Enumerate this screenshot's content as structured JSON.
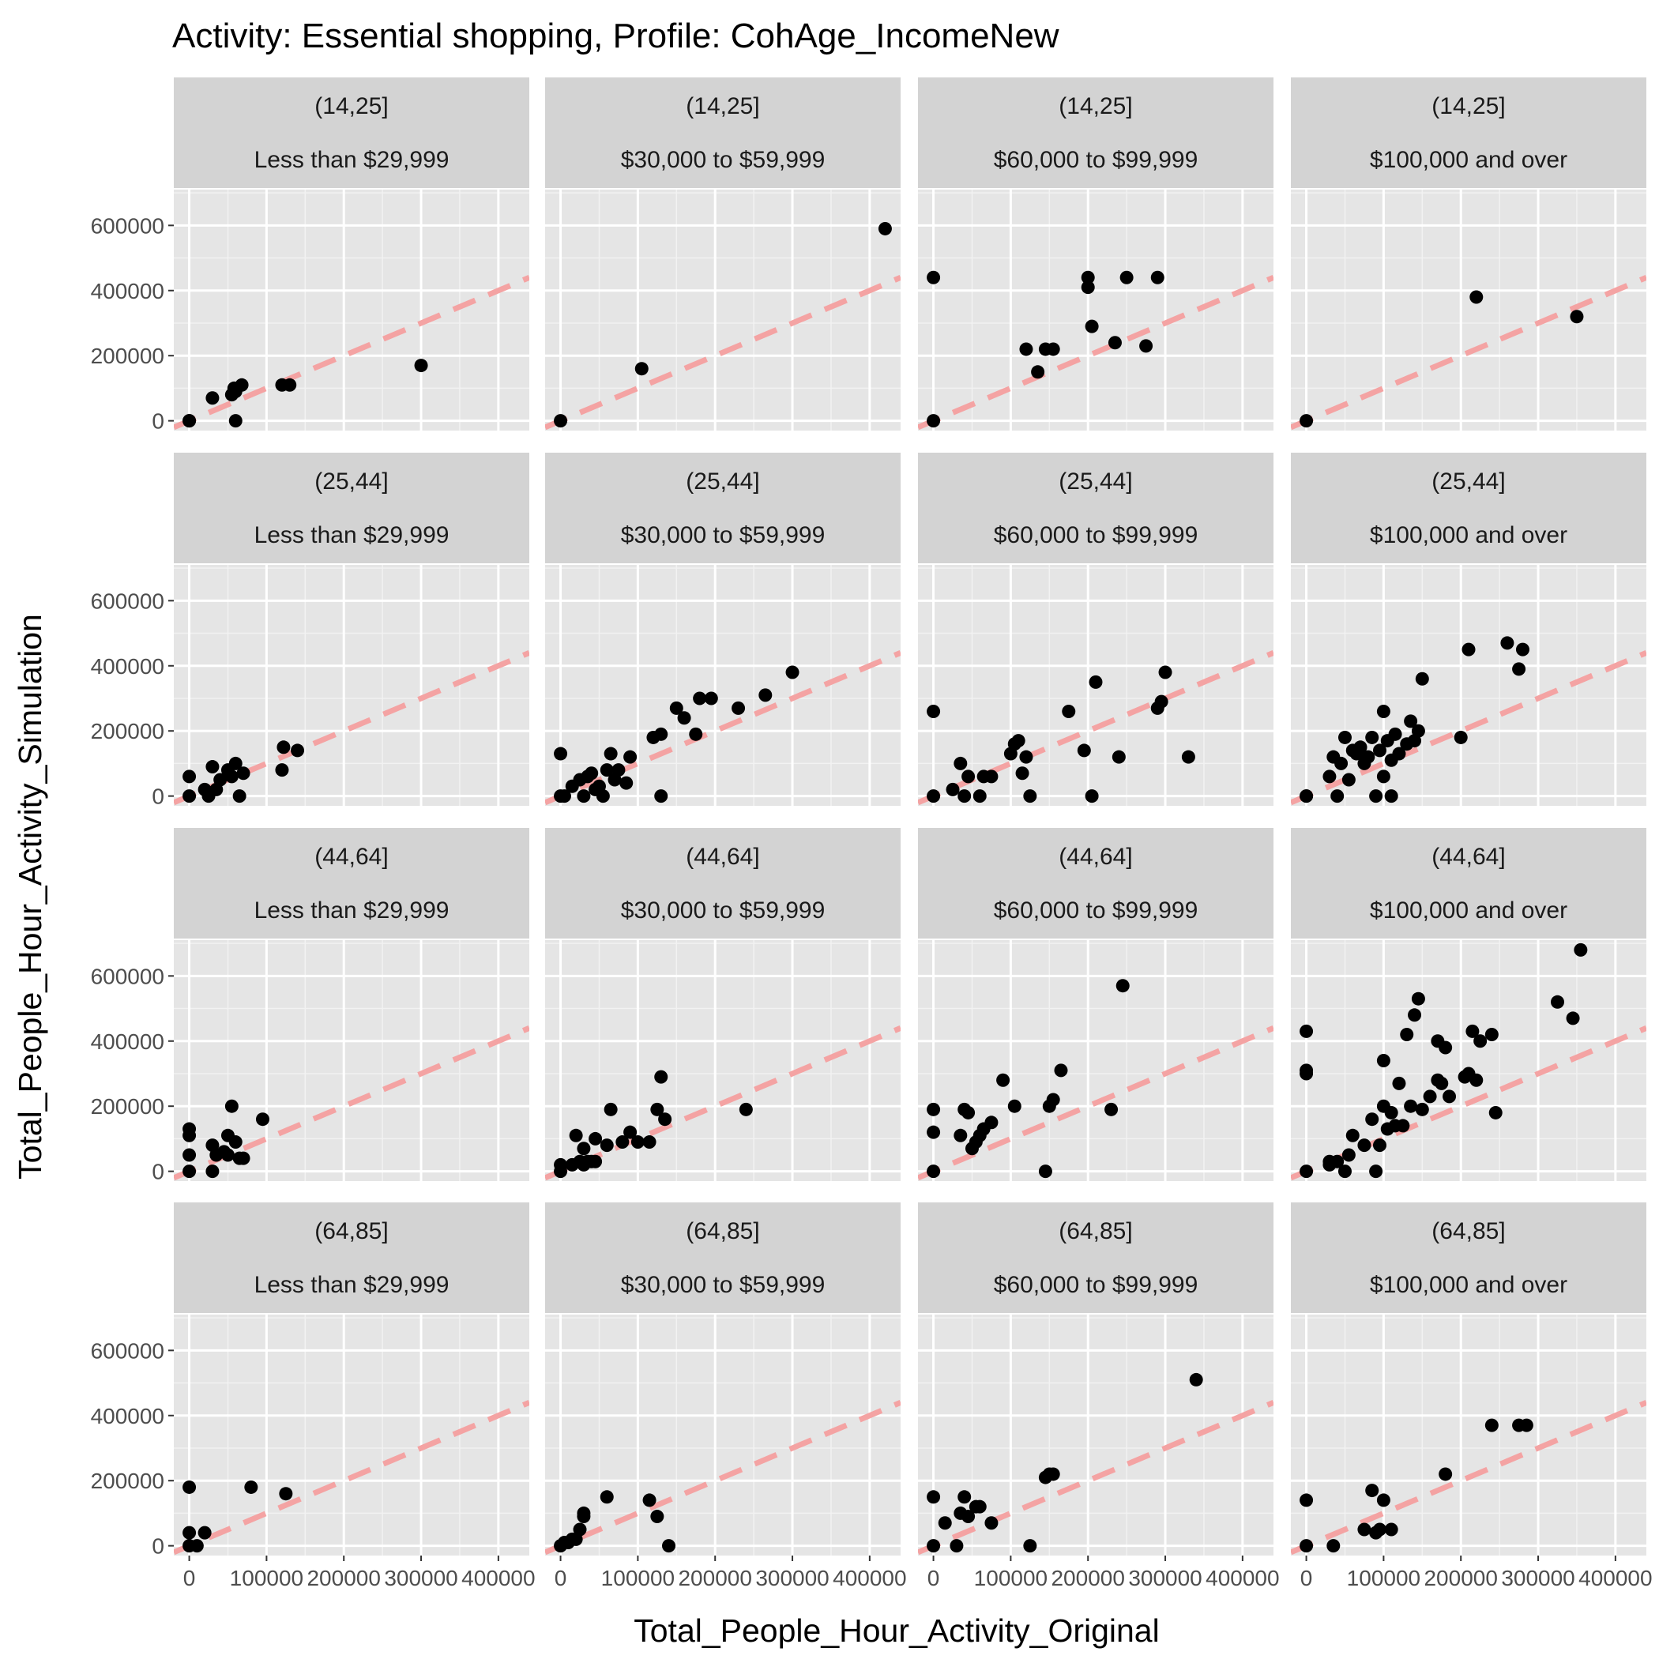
{
  "chart_data": {
    "type": "scatter",
    "title": "Activity: Essential shopping, Profile: CohAge_IncomeNew",
    "xlabel": "Total_People_Hour_Activity_Original",
    "ylabel": "Total_People_Hour_Activity_Simulation",
    "xlim": [
      -20000,
      440000
    ],
    "ylim": [
      -30000,
      710000
    ],
    "x_ticks": [
      0,
      100000,
      200000,
      300000,
      400000
    ],
    "x_tick_labels": [
      "0",
      "100000",
      "200000",
      "300000",
      "400000"
    ],
    "y_ticks": [
      0,
      200000,
      400000,
      600000
    ],
    "y_tick_labels": [
      "0",
      "200000",
      "400000",
      "600000"
    ],
    "reference_line": {
      "style": "dashed",
      "color": "#f4a3a3",
      "slope": 1,
      "intercept": 0
    },
    "grid": true,
    "panel_background": "#e5e5e5",
    "strip_background": "#d3d3d3",
    "point_color": "#000000",
    "panels": [
      {
        "age": "(14,25]",
        "income": "Less than $29,999",
        "x": [
          0,
          30000,
          55000,
          58000,
          60000,
          68000,
          120000,
          130000,
          300000,
          60000,
          0
        ],
        "y": [
          0,
          70000,
          80000,
          100000,
          90000,
          110000,
          110000,
          110000,
          170000,
          0,
          0
        ]
      },
      {
        "age": "(14,25]",
        "income": "$30,000 to $59,999",
        "x": [
          0,
          105000,
          420000
        ],
        "y": [
          0,
          160000,
          590000
        ]
      },
      {
        "age": "(14,25]",
        "income": "$60,000 to $99,999",
        "x": [
          0,
          0,
          120000,
          135000,
          145000,
          155000,
          200000,
          200000,
          205000,
          235000,
          250000,
          275000,
          290000
        ],
        "y": [
          0,
          440000,
          220000,
          150000,
          220000,
          220000,
          410000,
          440000,
          290000,
          240000,
          440000,
          230000,
          440000
        ]
      },
      {
        "age": "(14,25]",
        "income": "$100,000 and over",
        "x": [
          0,
          220000,
          350000
        ],
        "y": [
          0,
          380000,
          320000
        ]
      },
      {
        "age": "(25,44]",
        "income": "Less than $29,999",
        "x": [
          0,
          0,
          20000,
          25000,
          30000,
          35000,
          40000,
          50000,
          55000,
          60000,
          65000,
          70000,
          120000,
          122000,
          140000
        ],
        "y": [
          0,
          60000,
          20000,
          0,
          90000,
          20000,
          50000,
          80000,
          60000,
          100000,
          0,
          70000,
          80000,
          150000,
          140000
        ]
      },
      {
        "age": "(25,44]",
        "income": "$30,000 to $59,999",
        "x": [
          0,
          0,
          5000,
          15000,
          25000,
          30000,
          35000,
          40000,
          45000,
          50000,
          55000,
          60000,
          65000,
          70000,
          75000,
          85000,
          90000,
          120000,
          130000,
          130000,
          150000,
          160000,
          175000,
          180000,
          195000,
          230000,
          265000,
          300000
        ],
        "y": [
          0,
          130000,
          0,
          30000,
          50000,
          0,
          60000,
          70000,
          20000,
          30000,
          0,
          80000,
          130000,
          50000,
          80000,
          40000,
          120000,
          180000,
          190000,
          0,
          270000,
          240000,
          190000,
          300000,
          300000,
          270000,
          310000,
          380000
        ]
      },
      {
        "age": "(25,44]",
        "income": "$60,000 to $99,999",
        "x": [
          0,
          0,
          25000,
          35000,
          40000,
          45000,
          60000,
          65000,
          75000,
          100000,
          105000,
          110000,
          115000,
          120000,
          125000,
          175000,
          195000,
          205000,
          210000,
          240000,
          290000,
          295000,
          300000,
          330000
        ],
        "y": [
          0,
          260000,
          20000,
          100000,
          0,
          60000,
          0,
          60000,
          60000,
          130000,
          160000,
          170000,
          70000,
          120000,
          0,
          260000,
          140000,
          0,
          350000,
          120000,
          270000,
          290000,
          380000,
          120000
        ]
      },
      {
        "age": "(25,44]",
        "income": "$100,000 and over",
        "x": [
          0,
          0,
          30000,
          35000,
          40000,
          45000,
          50000,
          55000,
          60000,
          65000,
          70000,
          75000,
          80000,
          85000,
          90000,
          95000,
          100000,
          100000,
          105000,
          110000,
          110000,
          115000,
          120000,
          130000,
          135000,
          140000,
          145000,
          150000,
          200000,
          210000,
          260000,
          275000,
          280000
        ],
        "y": [
          0,
          0,
          60000,
          120000,
          0,
          100000,
          180000,
          50000,
          140000,
          130000,
          150000,
          100000,
          120000,
          180000,
          0,
          140000,
          60000,
          260000,
          170000,
          110000,
          0,
          190000,
          130000,
          160000,
          230000,
          170000,
          200000,
          360000,
          180000,
          450000,
          470000,
          390000,
          450000
        ]
      },
      {
        "age": "(44,64]",
        "income": "Less than $29,999",
        "x": [
          0,
          0,
          0,
          0,
          30000,
          30000,
          35000,
          45000,
          50000,
          50000,
          55000,
          60000,
          65000,
          70000,
          95000
        ],
        "y": [
          0,
          50000,
          110000,
          130000,
          0,
          80000,
          50000,
          60000,
          110000,
          50000,
          200000,
          90000,
          40000,
          40000,
          160000
        ]
      },
      {
        "age": "(44,64]",
        "income": "$30,000 to $59,999",
        "x": [
          0,
          0,
          15000,
          20000,
          25000,
          30000,
          35000,
          40000,
          45000,
          60000,
          65000,
          80000,
          90000,
          100000,
          115000,
          125000,
          130000,
          135000,
          240000,
          30000,
          45000
        ],
        "y": [
          0,
          20000,
          20000,
          110000,
          30000,
          70000,
          30000,
          30000,
          100000,
          80000,
          190000,
          90000,
          120000,
          90000,
          90000,
          190000,
          290000,
          160000,
          190000,
          20000,
          30000
        ]
      },
      {
        "age": "(44,64]",
        "income": "$60,000 to $99,999",
        "x": [
          0,
          0,
          0,
          35000,
          40000,
          45000,
          50000,
          55000,
          60000,
          65000,
          75000,
          90000,
          105000,
          145000,
          150000,
          155000,
          165000,
          230000,
          245000
        ],
        "y": [
          0,
          120000,
          190000,
          110000,
          190000,
          180000,
          70000,
          90000,
          110000,
          130000,
          150000,
          280000,
          200000,
          0,
          200000,
          220000,
          310000,
          190000,
          570000
        ]
      },
      {
        "age": "(44,64]",
        "income": "$100,000 and over",
        "x": [
          0,
          0,
          0,
          0,
          30000,
          40000,
          50000,
          55000,
          60000,
          75000,
          85000,
          90000,
          95000,
          100000,
          100000,
          105000,
          110000,
          115000,
          120000,
          125000,
          130000,
          135000,
          140000,
          145000,
          150000,
          160000,
          170000,
          170000,
          175000,
          180000,
          185000,
          205000,
          210000,
          215000,
          220000,
          225000,
          240000,
          245000,
          325000,
          345000,
          355000,
          30000
        ],
        "y": [
          0,
          300000,
          310000,
          430000,
          30000,
          30000,
          0,
          50000,
          110000,
          80000,
          160000,
          0,
          80000,
          200000,
          340000,
          130000,
          180000,
          140000,
          270000,
          140000,
          420000,
          200000,
          480000,
          530000,
          190000,
          230000,
          400000,
          280000,
          270000,
          380000,
          230000,
          290000,
          300000,
          430000,
          280000,
          400000,
          420000,
          180000,
          520000,
          470000,
          680000,
          20000
        ]
      },
      {
        "age": "(64,85]",
        "income": "Less than $29,999",
        "x": [
          0,
          0,
          0,
          10000,
          20000,
          80000,
          125000
        ],
        "y": [
          0,
          40000,
          180000,
          0,
          40000,
          180000,
          160000
        ]
      },
      {
        "age": "(64,85]",
        "income": "$30,000 to $59,999",
        "x": [
          0,
          5000,
          10000,
          15000,
          20000,
          25000,
          30000,
          30000,
          60000,
          115000,
          125000,
          140000
        ],
        "y": [
          0,
          10000,
          10000,
          20000,
          20000,
          50000,
          90000,
          100000,
          150000,
          140000,
          90000,
          0
        ]
      },
      {
        "age": "(64,85]",
        "income": "$60,000 to $99,999",
        "x": [
          0,
          0,
          15000,
          35000,
          40000,
          45000,
          55000,
          60000,
          75000,
          125000,
          145000,
          150000,
          155000,
          340000,
          30000
        ],
        "y": [
          0,
          150000,
          70000,
          100000,
          150000,
          90000,
          120000,
          120000,
          70000,
          0,
          210000,
          220000,
          220000,
          510000,
          0
        ]
      },
      {
        "age": "(64,85]",
        "income": "$100,000 and over",
        "x": [
          0,
          0,
          35000,
          75000,
          85000,
          90000,
          95000,
          100000,
          110000,
          180000,
          240000,
          275000,
          285000
        ],
        "y": [
          0,
          140000,
          0,
          50000,
          170000,
          40000,
          50000,
          140000,
          50000,
          220000,
          370000,
          370000,
          370000
        ]
      }
    ]
  }
}
